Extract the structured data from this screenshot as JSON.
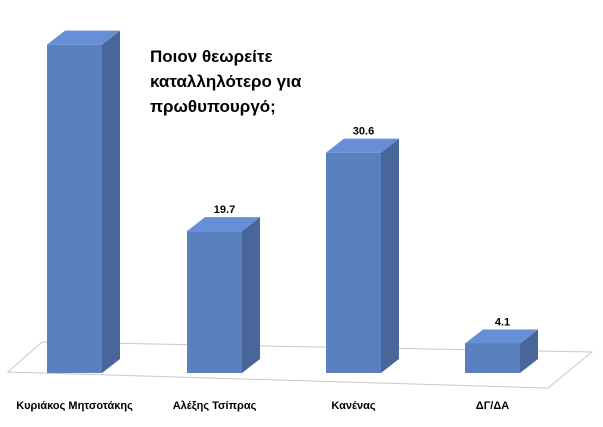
{
  "chart_data": {
    "type": "bar3d",
    "title": [
      "Ποιον θεωρείτε",
      "καταλληλότερο για",
      "πρωθυπουργό;"
    ],
    "categories": [
      "Κυριάκος Μητσοτάκης",
      "Αλέξης Τσίπρας",
      "Κανένας",
      "ΔΓ/ΔΑ"
    ],
    "values": [
      45.6,
      19.7,
      30.6,
      4.1
    ],
    "value_labels": [
      null,
      "19.7",
      "30.6",
      "4.1"
    ],
    "color": "#5b80c0"
  }
}
